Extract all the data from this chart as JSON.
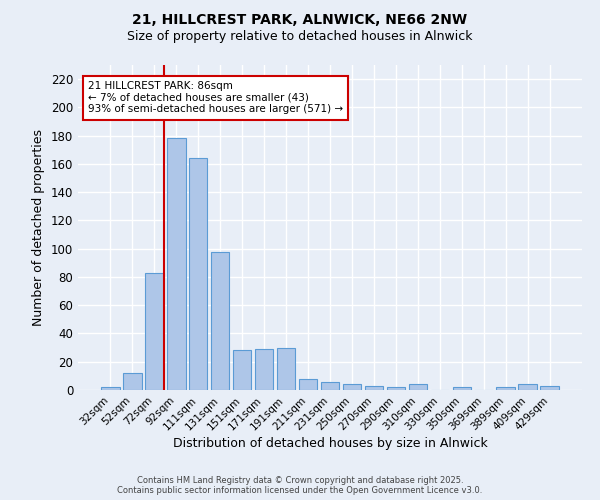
{
  "title_line1": "21, HILLCREST PARK, ALNWICK, NE66 2NW",
  "title_line2": "Size of property relative to detached houses in Alnwick",
  "xlabel": "Distribution of detached houses by size in Alnwick",
  "ylabel": "Number of detached properties",
  "categories": [
    "32sqm",
    "52sqm",
    "72sqm",
    "92sqm",
    "111sqm",
    "131sqm",
    "151sqm",
    "171sqm",
    "191sqm",
    "211sqm",
    "231sqm",
    "250sqm",
    "270sqm",
    "290sqm",
    "310sqm",
    "330sqm",
    "350sqm",
    "369sqm",
    "389sqm",
    "409sqm",
    "429sqm"
  ],
  "values": [
    2,
    12,
    83,
    178,
    164,
    98,
    28,
    29,
    30,
    8,
    6,
    4,
    3,
    2,
    4,
    0,
    2,
    0,
    2,
    4,
    3
  ],
  "bar_color": "#aec6e8",
  "bar_edge_color": "#5b9bd5",
  "background_color": "#e8eef7",
  "grid_color": "#ffffff",
  "vline_color": "#cc0000",
  "annotation_text": "21 HILLCREST PARK: 86sqm\n← 7% of detached houses are smaller (43)\n93% of semi-detached houses are larger (571) →",
  "annotation_box_color": "#ffffff",
  "annotation_box_edge": "#cc0000",
  "ylim": [
    0,
    230
  ],
  "yticks": [
    0,
    20,
    40,
    60,
    80,
    100,
    120,
    140,
    160,
    180,
    200,
    220
  ],
  "footer_text": "Contains HM Land Registry data © Crown copyright and database right 2025.\nContains public sector information licensed under the Open Government Licence v3.0."
}
